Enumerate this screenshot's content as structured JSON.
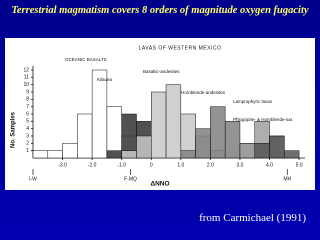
{
  "slide": {
    "title": "Terrestrial magmatism covers 8 orders of magnitude oxygen fugacity",
    "caption": "from Carmichael (1991)"
  },
  "chart_data": {
    "type": "histogram",
    "header": "LAVAS OF WESTERN MEXICO",
    "x_label": "ΔNNO",
    "y_label": "No. Samples",
    "bins": [
      -4.0,
      -3.5,
      -3.0,
      -2.5,
      -2.0,
      -1.5,
      -1.0,
      -0.5,
      0.0,
      0.5,
      1.0,
      1.5,
      2.0,
      2.5,
      3.0,
      3.5,
      4.0,
      4.5,
      5.0
    ],
    "series": [
      {
        "name": "OCEANIC BASALTS",
        "color": "#ffffff",
        "values": [
          1,
          1,
          2,
          6,
          12,
          7,
          3,
          1,
          0,
          0,
          0,
          0,
          0,
          0,
          0,
          0,
          0,
          0
        ]
      },
      {
        "name": "Kilauea",
        "color": "#333333",
        "values": [
          0,
          0,
          0,
          0,
          0,
          1,
          6,
          5,
          0,
          0,
          0,
          0,
          0,
          0,
          0,
          0,
          0,
          0
        ]
      },
      {
        "name": "Basaltic-andesites",
        "color": "#c8c8c8",
        "values": [
          0,
          0,
          0,
          0,
          0,
          0,
          1,
          3,
          9,
          10,
          6,
          3,
          1,
          0,
          0,
          0,
          0,
          0
        ]
      },
      {
        "name": "Hornblende-andesites",
        "color": "#808080",
        "values": [
          0,
          0,
          0,
          0,
          0,
          0,
          0,
          0,
          0,
          0,
          1,
          4,
          7,
          5,
          2,
          0,
          0,
          0
        ]
      },
      {
        "name": "Lamprophyric lavas",
        "color": "#a0a0a0",
        "values": [
          0,
          0,
          0,
          0,
          0,
          0,
          0,
          0,
          0,
          0,
          0,
          0,
          0,
          0,
          2,
          5,
          3,
          0
        ]
      },
      {
        "name": "Phlogopite- & Hornblende-sar.",
        "color": "#555555",
        "values": [
          0,
          0,
          0,
          0,
          0,
          0,
          0,
          0,
          0,
          0,
          0,
          0,
          0,
          0,
          0,
          2,
          3,
          1
        ]
      }
    ],
    "annotations": [
      {
        "text": "I-W",
        "x": -4.0
      },
      {
        "text": "F-MQ",
        "x": -0.7
      },
      {
        "text": "MH",
        "x": 4.6
      }
    ],
    "xlim": [
      -4.0,
      5.2
    ],
    "xticks": [
      {
        "value": -3,
        "label": "-3.0"
      },
      {
        "value": -2,
        "label": "-2.0"
      },
      {
        "value": -1,
        "label": "-1.0"
      },
      0,
      {
        "value": 1,
        "label": "1.0"
      },
      {
        "value": 2,
        "label": "2.0"
      },
      {
        "value": 3,
        "label": "3.0"
      },
      {
        "value": 4,
        "label": "4.0"
      },
      {
        "value": 5,
        "label": "5.0"
      }
    ],
    "ylim": [
      0,
      12
    ],
    "yticks": [
      1,
      2,
      3,
      4,
      5,
      6,
      7,
      8,
      9,
      10,
      11,
      12
    ],
    "grid": false
  }
}
